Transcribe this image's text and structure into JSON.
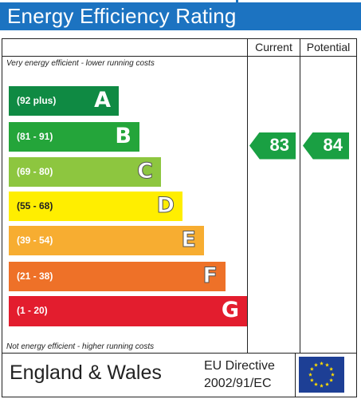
{
  "header": {
    "title": "Energy Efficiency Rating"
  },
  "columns": {
    "current": "Current",
    "potential": "Potential"
  },
  "notes": {
    "top": "Very energy efficient - lower running costs",
    "bottom": "Not energy efficient - higher running costs"
  },
  "footer": {
    "country": "England & Wales",
    "directive_line1": "EU Directive",
    "directive_line2": "2002/91/EC"
  },
  "chart_data": {
    "type": "bar",
    "title": "Energy Efficiency Rating",
    "bands": [
      {
        "letter": "A",
        "range": "(92 plus)",
        "min": 92,
        "max": 100,
        "color": "#0f8a43"
      },
      {
        "letter": "B",
        "range": "(81 - 91)",
        "min": 81,
        "max": 91,
        "color": "#24a53a"
      },
      {
        "letter": "C",
        "range": "(69 - 80)",
        "min": 69,
        "max": 80,
        "color": "#8dc63f"
      },
      {
        "letter": "D",
        "range": "(55 - 68)",
        "min": 55,
        "max": 68,
        "color": "#ffee00"
      },
      {
        "letter": "E",
        "range": "(39 - 54)",
        "min": 39,
        "max": 54,
        "color": "#f7ad31"
      },
      {
        "letter": "F",
        "range": "(21 - 38)",
        "min": 21,
        "max": 38,
        "color": "#ee7128"
      },
      {
        "letter": "G",
        "range": "(1 - 20)",
        "min": 1,
        "max": 20,
        "color": "#e31d2e"
      }
    ],
    "current": 83,
    "potential": 84,
    "pointer_color": "#1aa043"
  }
}
